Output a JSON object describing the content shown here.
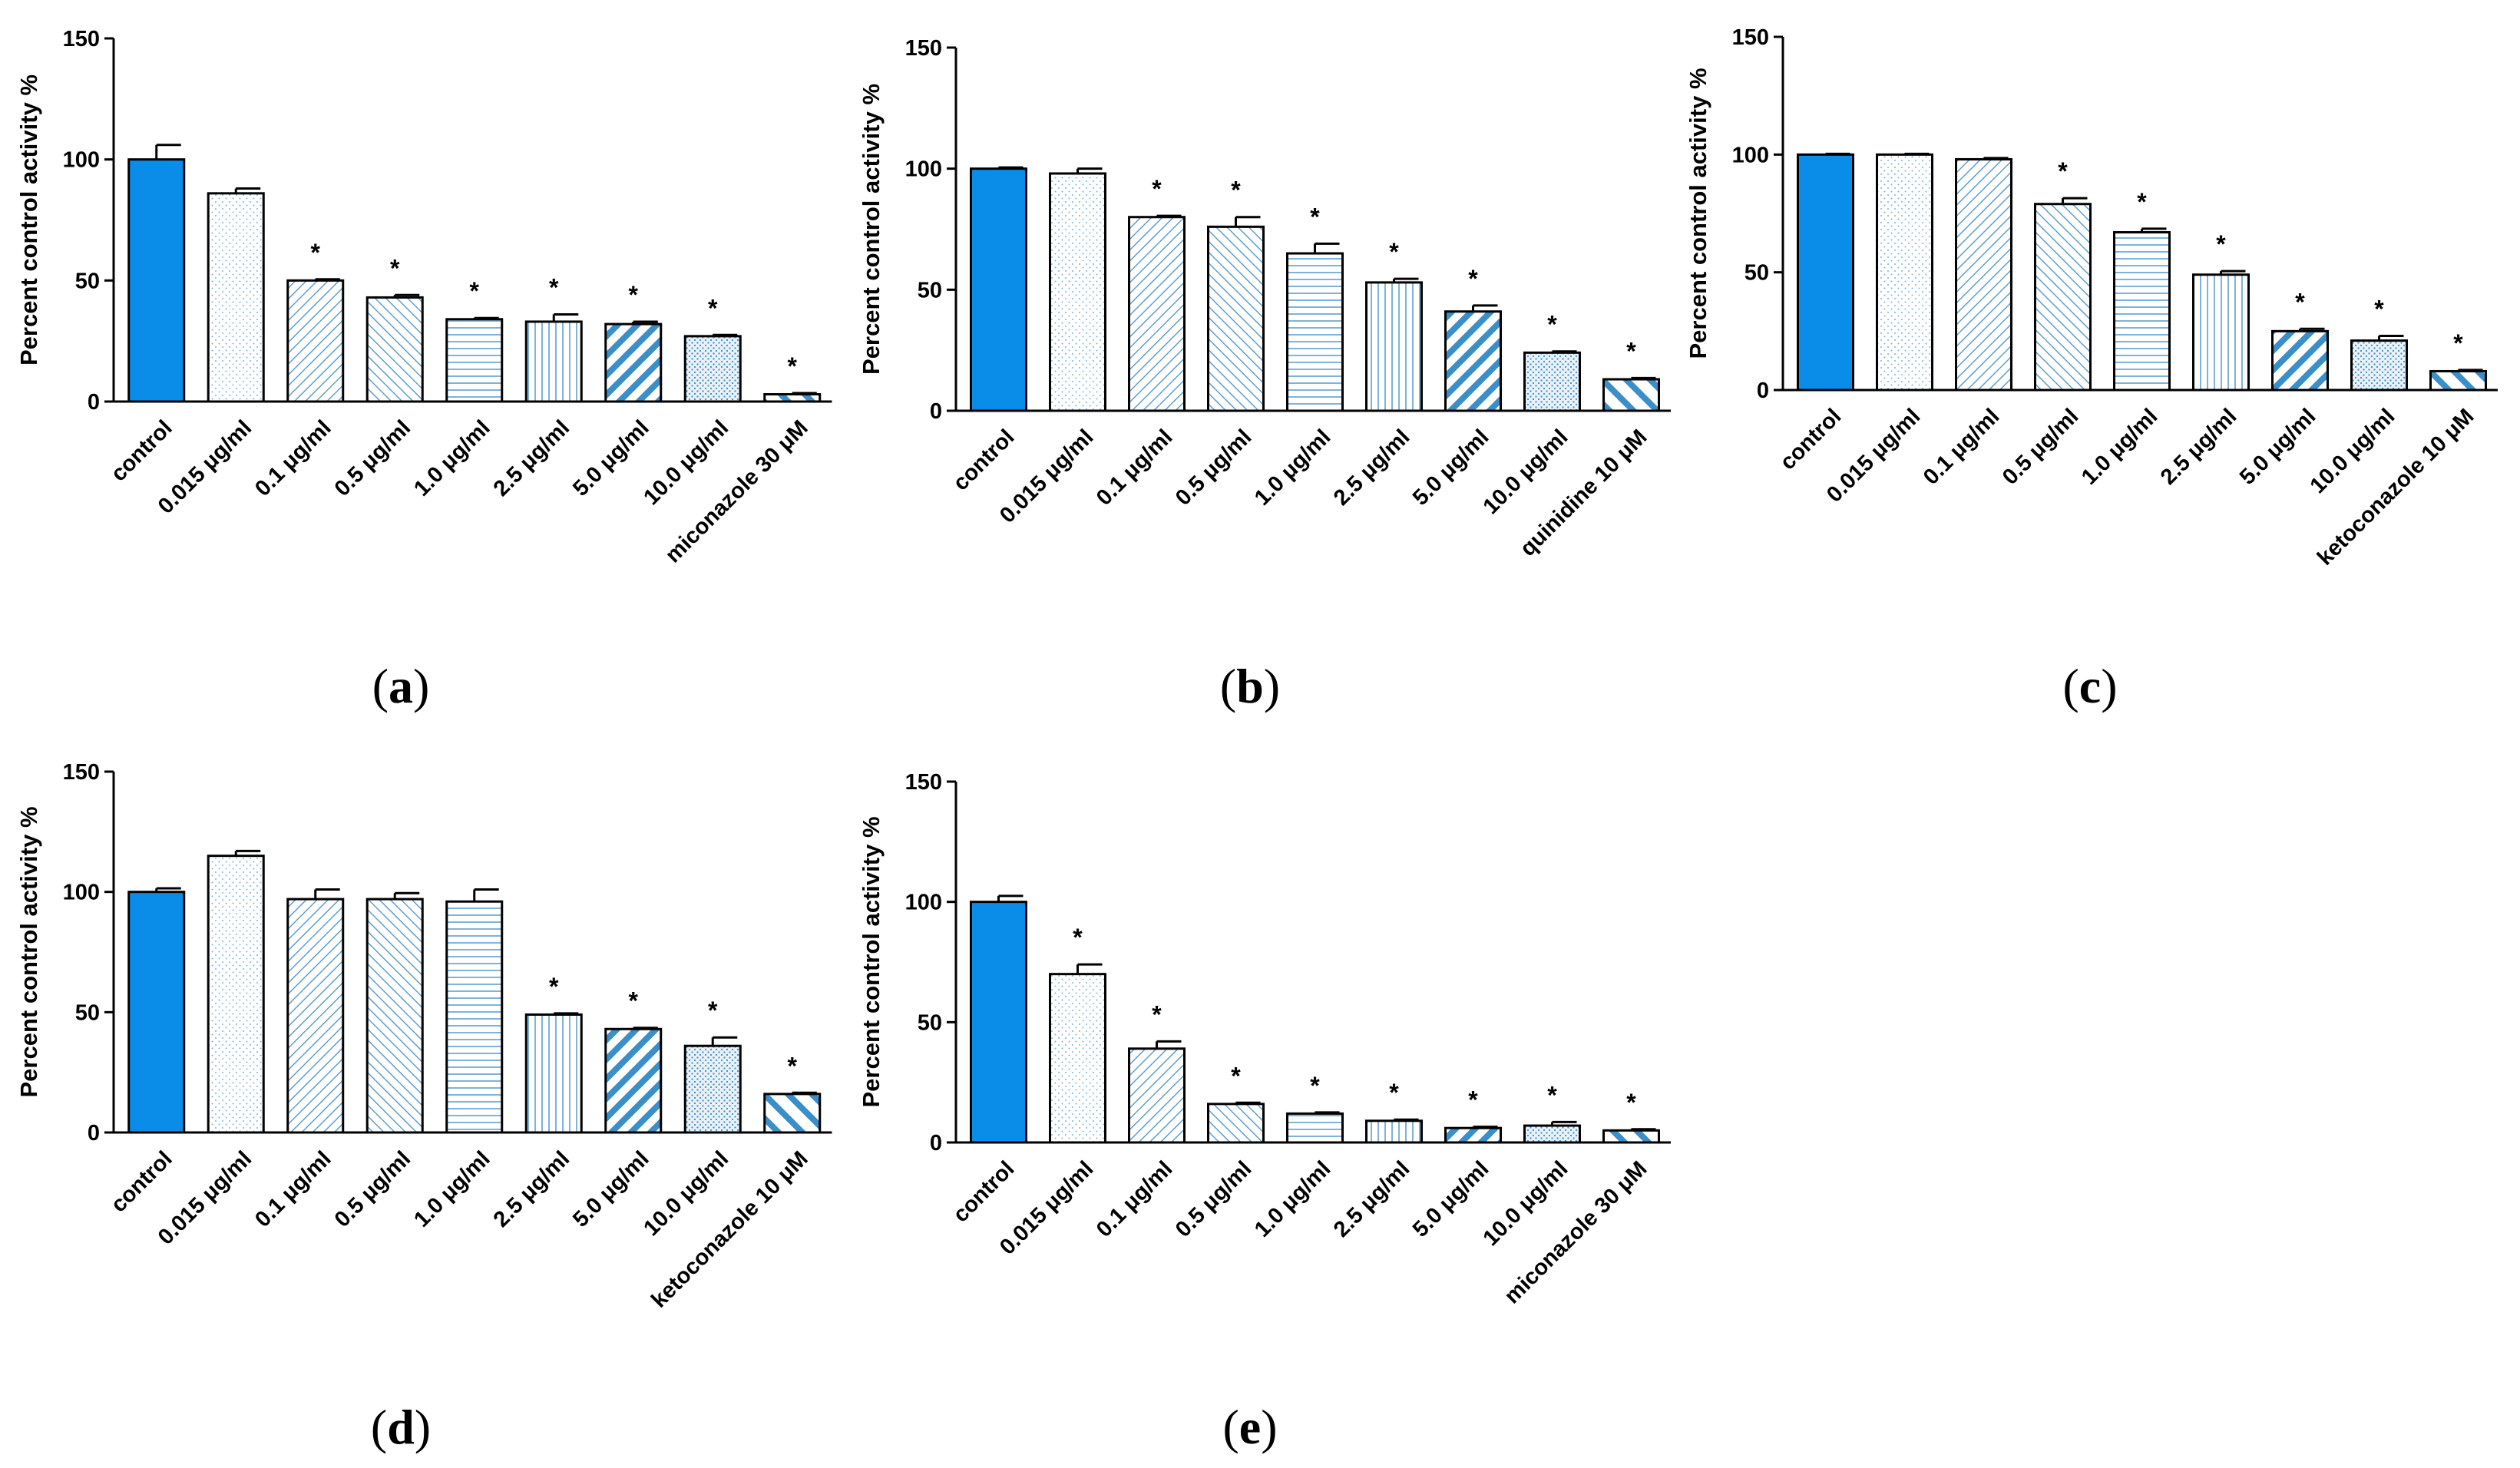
{
  "colors": {
    "control": "#0a8de8",
    "hatch": "#3b8fc9",
    "pattern_light": "#9cc7e6",
    "axis": "#000000"
  },
  "chart_data": [
    {
      "type": "bar",
      "panel": "a",
      "ylabel": "Percent control activity %",
      "ylim": [
        0,
        150
      ],
      "yticks": [
        "0",
        "50",
        "100",
        "150"
      ],
      "categories": [
        "control",
        "0.015 μg/ml",
        "0.1 μg/ml",
        "0.5 μg/ml",
        "1.0 μg/ml",
        "2.5 μg/ml",
        "5.0 μg/ml",
        "10.0 μg/ml",
        "miconazole 30 μM"
      ],
      "values": [
        100,
        86,
        50,
        43,
        34,
        33,
        32,
        27,
        3
      ],
      "errors": [
        6,
        2,
        0.5,
        1,
        0.5,
        3,
        1,
        0.5,
        0.5
      ],
      "significance": [
        "",
        "",
        "*",
        "*",
        "*",
        "*",
        "*",
        "*",
        "*"
      ],
      "label_open": "(",
      "label_letter": "a",
      "label_close": ")"
    },
    {
      "type": "bar",
      "panel": "b",
      "ylabel": "Percent control activity %",
      "ylim": [
        0,
        150
      ],
      "yticks": [
        "0",
        "50",
        "100",
        "150"
      ],
      "categories": [
        "control",
        "0.015 μg/ml",
        "0.1 μg/ml",
        "0.5 μg/ml",
        "1.0 μg/ml",
        "2.5 μg/ml",
        "5.0 μg/ml",
        "10.0 μg/ml",
        "quinidine 10 μM"
      ],
      "values": [
        100,
        98,
        80,
        76,
        65,
        53,
        41,
        24,
        13
      ],
      "errors": [
        0.5,
        2,
        0.5,
        4,
        4,
        1.5,
        2.5,
        0.5,
        0.5
      ],
      "significance": [
        "",
        "",
        "*",
        "*",
        "*",
        "*",
        "*",
        "*",
        "*"
      ],
      "label_open": "(",
      "label_letter": "b",
      "label_close": ")"
    },
    {
      "type": "bar",
      "panel": "c",
      "ylabel": "Percent control activity %",
      "ylim": [
        0,
        150
      ],
      "yticks": [
        "0",
        "50",
        "100",
        "150"
      ],
      "categories": [
        "control",
        "0.015 μg/ml",
        "0.1 μg/ml",
        "0.5 μg/ml",
        "1.0 μg/ml",
        "2.5 μg/ml",
        "5.0 μg/ml",
        "10.0 μg/ml",
        "ketoconazole 10 μM"
      ],
      "values": [
        100,
        100,
        98,
        79,
        67,
        49,
        25,
        21,
        8
      ],
      "errors": [
        0.3,
        0.3,
        0.5,
        2.5,
        1.5,
        1.5,
        1,
        2,
        0.5
      ],
      "significance": [
        "",
        "",
        "",
        "*",
        "*",
        "*",
        "*",
        "*",
        "*"
      ],
      "label_open": "(",
      "label_letter": "c",
      "label_close": ")"
    },
    {
      "type": "bar",
      "panel": "d",
      "ylabel": "Percent control activity %",
      "ylim": [
        0,
        150
      ],
      "yticks": [
        "0",
        "50",
        "100",
        "150"
      ],
      "categories": [
        "control",
        "0.015 μg/ml",
        "0.1 μg/ml",
        "0.5 μg/ml",
        "1.0 μg/ml",
        "2.5 μg/ml",
        "5.0 μg/ml",
        "10.0 μg/ml",
        "ketoconazole 10 μM"
      ],
      "values": [
        100,
        115,
        97,
        97,
        96,
        49,
        43,
        36,
        16
      ],
      "errors": [
        1.5,
        2,
        4,
        2.5,
        5,
        0.5,
        0.5,
        3.5,
        0.5
      ],
      "significance": [
        "",
        "",
        "",
        "",
        "",
        "*",
        "*",
        "*",
        "*"
      ],
      "label_open": "(",
      "label_letter": "d",
      "label_close": ")"
    },
    {
      "type": "bar",
      "panel": "e",
      "ylabel": "Percent control activity %",
      "ylim": [
        0,
        150
      ],
      "yticks": [
        "0",
        "50",
        "100",
        "150"
      ],
      "categories": [
        "control",
        "0.015 μg/ml",
        "0.1 μg/ml",
        "0.5 μg/ml",
        "1.0 μg/ml",
        "2.5 μg/ml",
        "5.0 μg/ml",
        "10.0 μg/ml",
        "miconazole 30 μM"
      ],
      "values": [
        100,
        70,
        39,
        16,
        12,
        9,
        6,
        7,
        5
      ],
      "errors": [
        2.5,
        4,
        3,
        0.5,
        0.5,
        0.5,
        0.5,
        1.5,
        0.5
      ],
      "significance": [
        "",
        "*",
        "*",
        "*",
        "*",
        "*",
        "*",
        "*",
        "*"
      ],
      "label_open": "(",
      "label_letter": "e",
      "label_close": ")"
    }
  ]
}
